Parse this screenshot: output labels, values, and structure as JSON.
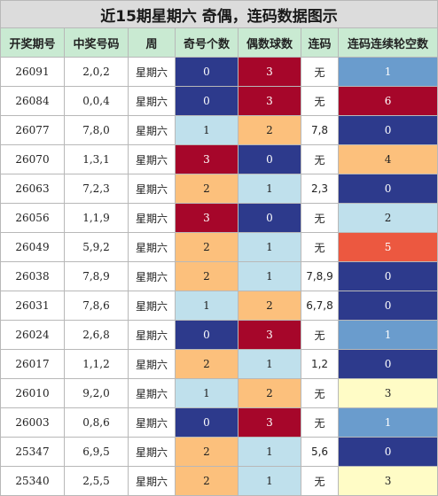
{
  "title": "近15期星期六 奇偶，连码数据图示",
  "headers": [
    "开奖期号",
    "中奖号码",
    "周",
    "奇号个数",
    "偶数球数",
    "连码",
    "连码连续轮空数"
  ],
  "colors": {
    "title_bg": "#dcdcdc",
    "header_bg": "#c9ead2",
    "navy": "#2d3a8c",
    "crimson": "#a6062a",
    "light_blue": "#bfe0ec",
    "orange": "#fcc07c",
    "steel_blue": "#6a9ccd",
    "red_orange": "#ec5840",
    "light_yellow": "#fffcc6"
  },
  "rows": [
    {
      "issue": "26091",
      "numbers": "2,0,2",
      "week": "星期六",
      "odd": "0",
      "odd_color": "navy",
      "even": "3",
      "even_color": "crimson",
      "lianma": "无",
      "gap": "1",
      "gap_color": "steel_blue"
    },
    {
      "issue": "26084",
      "numbers": "0,0,4",
      "week": "星期六",
      "odd": "0",
      "odd_color": "navy",
      "even": "3",
      "even_color": "crimson",
      "lianma": "无",
      "gap": "6",
      "gap_color": "crimson"
    },
    {
      "issue": "26077",
      "numbers": "7,8,0",
      "week": "星期六",
      "odd": "1",
      "odd_color": "light_blue",
      "even": "2",
      "even_color": "orange",
      "lianma": "7,8",
      "gap": "0",
      "gap_color": "navy"
    },
    {
      "issue": "26070",
      "numbers": "1,3,1",
      "week": "星期六",
      "odd": "3",
      "odd_color": "crimson",
      "even": "0",
      "even_color": "navy",
      "lianma": "无",
      "gap": "4",
      "gap_color": "orange"
    },
    {
      "issue": "26063",
      "numbers": "7,2,3",
      "week": "星期六",
      "odd": "2",
      "odd_color": "orange",
      "even": "1",
      "even_color": "light_blue",
      "lianma": "2,3",
      "gap": "0",
      "gap_color": "navy"
    },
    {
      "issue": "26056",
      "numbers": "1,1,9",
      "week": "星期六",
      "odd": "3",
      "odd_color": "crimson",
      "even": "0",
      "even_color": "navy",
      "lianma": "无",
      "gap": "2",
      "gap_color": "light_blue"
    },
    {
      "issue": "26049",
      "numbers": "5,9,2",
      "week": "星期六",
      "odd": "2",
      "odd_color": "orange",
      "even": "1",
      "even_color": "light_blue",
      "lianma": "无",
      "gap": "5",
      "gap_color": "red_orange"
    },
    {
      "issue": "26038",
      "numbers": "7,8,9",
      "week": "星期六",
      "odd": "2",
      "odd_color": "orange",
      "even": "1",
      "even_color": "light_blue",
      "lianma": "7,8,9",
      "gap": "0",
      "gap_color": "navy"
    },
    {
      "issue": "26031",
      "numbers": "7,8,6",
      "week": "星期六",
      "odd": "1",
      "odd_color": "light_blue",
      "even": "2",
      "even_color": "orange",
      "lianma": "6,7,8",
      "gap": "0",
      "gap_color": "navy"
    },
    {
      "issue": "26024",
      "numbers": "2,6,8",
      "week": "星期六",
      "odd": "0",
      "odd_color": "navy",
      "even": "3",
      "even_color": "crimson",
      "lianma": "无",
      "gap": "1",
      "gap_color": "steel_blue"
    },
    {
      "issue": "26017",
      "numbers": "1,1,2",
      "week": "星期六",
      "odd": "2",
      "odd_color": "orange",
      "even": "1",
      "even_color": "light_blue",
      "lianma": "1,2",
      "gap": "0",
      "gap_color": "navy"
    },
    {
      "issue": "26010",
      "numbers": "9,2,0",
      "week": "星期六",
      "odd": "1",
      "odd_color": "light_blue",
      "even": "2",
      "even_color": "orange",
      "lianma": "无",
      "gap": "3",
      "gap_color": "light_yellow"
    },
    {
      "issue": "26003",
      "numbers": "0,8,6",
      "week": "星期六",
      "odd": "0",
      "odd_color": "navy",
      "even": "3",
      "even_color": "crimson",
      "lianma": "无",
      "gap": "1",
      "gap_color": "steel_blue"
    },
    {
      "issue": "25347",
      "numbers": "6,9,5",
      "week": "星期六",
      "odd": "2",
      "odd_color": "orange",
      "even": "1",
      "even_color": "light_blue",
      "lianma": "5,6",
      "gap": "0",
      "gap_color": "navy"
    },
    {
      "issue": "25340",
      "numbers": "2,5,5",
      "week": "星期六",
      "odd": "2",
      "odd_color": "orange",
      "even": "1",
      "even_color": "light_blue",
      "lianma": "无",
      "gap": "3",
      "gap_color": "light_yellow"
    }
  ]
}
